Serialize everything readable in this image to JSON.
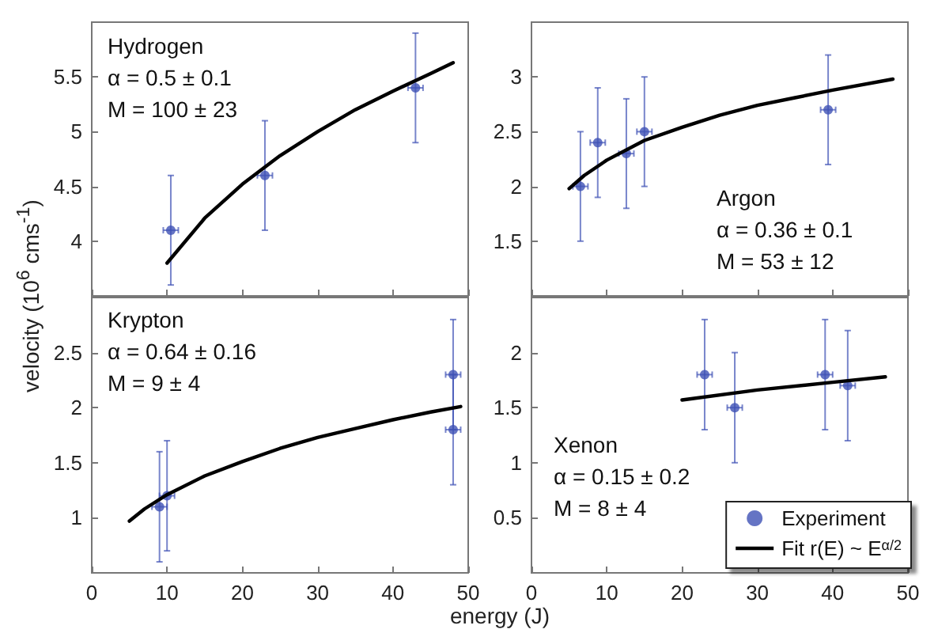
{
  "chart_data": [
    {
      "type": "scatter",
      "annotations": [
        "Hydrogen",
        "α = 0.5 ± 0.1",
        "M = 100 ± 23"
      ],
      "xlim": [
        0,
        50
      ],
      "xticks": [
        0,
        10,
        20,
        30,
        40,
        50
      ],
      "ylim": [
        3.5,
        6
      ],
      "yticks": [
        4,
        4.5,
        5,
        5.5
      ],
      "tick_labels": "y",
      "grid": false,
      "legend": false,
      "series": [
        {
          "marker": "circle",
          "color": "#3f51b5",
          "x": [
            10.5,
            23,
            43
          ],
          "values": [
            4.1,
            4.6,
            5.4
          ],
          "errors": [
            0.5,
            0.5,
            0.5
          ],
          "xerrors": [
            1,
            1,
            1
          ]
        },
        {
          "type": "line",
          "marker": "none",
          "line_style": "solid",
          "color": "#000000",
          "x": [
            10,
            15,
            20,
            25,
            30,
            35,
            40,
            45,
            48
          ],
          "values": [
            3.8,
            4.21,
            4.52,
            4.78,
            5.0,
            5.2,
            5.37,
            5.53,
            5.63
          ]
        }
      ]
    },
    {
      "type": "scatter",
      "annotations": [
        "Argon",
        "α = 0.36 ± 0.1",
        "M = 53 ± 12"
      ],
      "xlim": [
        0,
        50
      ],
      "xticks": [
        0,
        10,
        20,
        30,
        40,
        50
      ],
      "ylim": [
        1,
        3.5
      ],
      "yticks": [
        1.5,
        2,
        2.5,
        3
      ],
      "tick_labels": "y",
      "grid": false,
      "legend": false,
      "series": [
        {
          "marker": "circle",
          "color": "#3f51b5",
          "x": [
            6.5,
            8.8,
            12.6,
            15,
            39.4
          ],
          "values": [
            2.0,
            2.4,
            2.3,
            2.5,
            2.7
          ],
          "errors": [
            0.5,
            0.5,
            0.5,
            0.5,
            0.5
          ],
          "xerrors": [
            1,
            1,
            1,
            1,
            1
          ]
        },
        {
          "type": "line",
          "marker": "none",
          "line_style": "solid",
          "color": "#000000",
          "x": [
            5,
            7,
            10,
            15,
            20,
            25,
            30,
            35,
            40,
            48
          ],
          "values": [
            1.98,
            2.1,
            2.24,
            2.42,
            2.54,
            2.65,
            2.74,
            2.81,
            2.88,
            2.98
          ]
        }
      ]
    },
    {
      "type": "scatter",
      "xlabel": "energy (J)",
      "ylabel": "velocity (10$^{6}$ cms$^{-1}$)",
      "annotations": [
        "Krypton",
        "α = 0.64 ± 0.16",
        "M = 9 ± 4"
      ],
      "xlim": [
        0,
        50
      ],
      "xticks": [
        0,
        10,
        20,
        30,
        40,
        50
      ],
      "ylim": [
        0.5,
        3
      ],
      "yticks": [
        1,
        1.5,
        2,
        2.5
      ],
      "grid": false,
      "legend": false,
      "series": [
        {
          "marker": "circle",
          "color": "#3f51b5",
          "x": [
            9,
            10,
            48,
            48
          ],
          "values": [
            1.1,
            1.2,
            2.3,
            1.8
          ],
          "errors": [
            0.5,
            0.5,
            0.5,
            0.5
          ],
          "xerrors": [
            1,
            1,
            1,
            1
          ]
        },
        {
          "type": "line",
          "marker": "none",
          "line_style": "solid",
          "color": "#000000",
          "x": [
            5,
            7,
            10,
            15,
            20,
            25,
            30,
            35,
            40,
            45,
            49
          ],
          "values": [
            0.97,
            1.08,
            1.21,
            1.38,
            1.51,
            1.63,
            1.73,
            1.81,
            1.89,
            1.96,
            2.01
          ]
        }
      ]
    },
    {
      "type": "scatter",
      "annotations": [
        "Xenon",
        "α = 0.15 ± 0.2",
        "M = 8 ± 4"
      ],
      "xlim": [
        0,
        50
      ],
      "xticks": [
        0,
        10,
        20,
        30,
        40,
        50
      ],
      "ylim": [
        0,
        2.5
      ],
      "yticks": [
        0.5,
        1,
        1.5,
        2
      ],
      "grid": false,
      "legend": "bottom right",
      "series": [
        {
          "name": "Experiment",
          "marker": "circle",
          "color": "#3f51b5",
          "x": [
            23,
            27,
            39,
            42
          ],
          "values": [
            1.8,
            1.5,
            1.8,
            1.7
          ],
          "errors": [
            0.5,
            0.5,
            0.5,
            0.5
          ],
          "xerrors": [
            1,
            1,
            1,
            1
          ]
        },
        {
          "name": "Fit r(E) ~ E$^{α/2}$",
          "type": "line",
          "marker": "none",
          "line_style": "solid",
          "color": "#000000",
          "x": [
            20,
            30,
            40,
            47
          ],
          "values": [
            1.57,
            1.66,
            1.73,
            1.78
          ]
        }
      ]
    }
  ]
}
